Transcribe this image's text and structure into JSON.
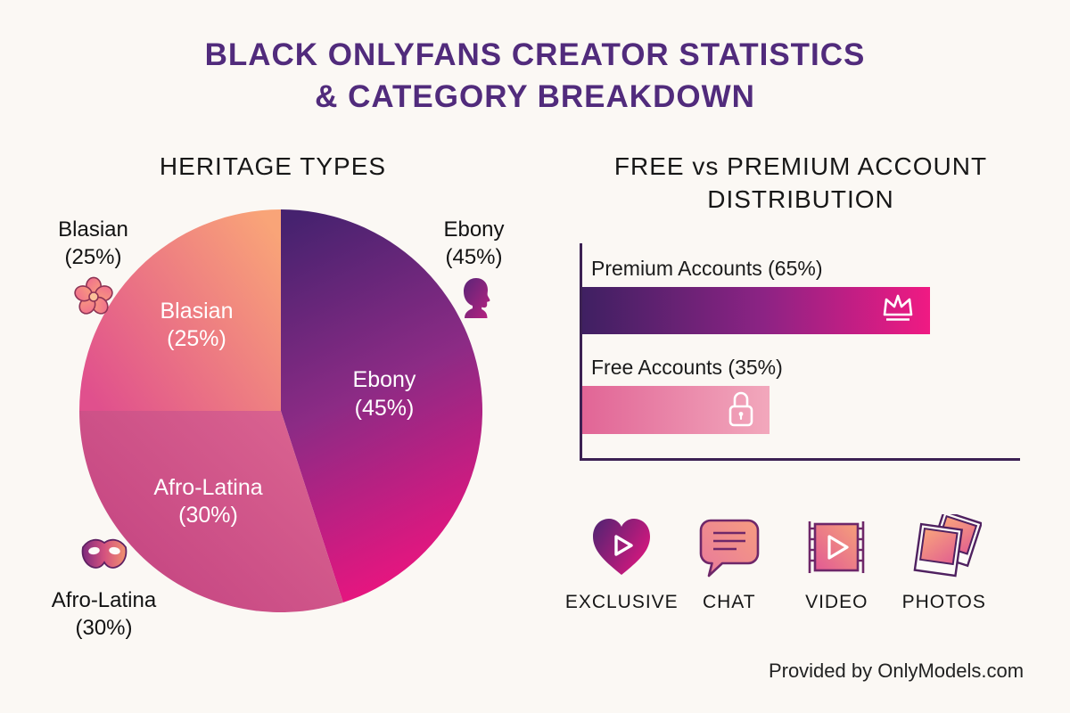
{
  "title": {
    "line1": "BLACK ONLYFANS CREATOR STATISTICS",
    "line2": "& CATEGORY BREAKDOWN"
  },
  "heritage": {
    "heading": "HERITAGE TYPES",
    "inner_labels": [
      {
        "name": "Blasian",
        "pct": "(25%)"
      },
      {
        "name": "Ebony",
        "pct": "(45%)"
      },
      {
        "name": "Afro-Latina",
        "pct": "(30%)"
      }
    ],
    "outer_labels": [
      {
        "name": "Blasian",
        "pct": "(25%)",
        "icon": "flower-icon"
      },
      {
        "name": "Ebony",
        "pct": "(45%)",
        "icon": "head-silhouette-icon"
      },
      {
        "name": "Afro-Latina",
        "pct": "(30%)",
        "icon": "carnival-mask-icon"
      }
    ]
  },
  "accounts": {
    "heading_line1": "FREE vs PREMIUM ACCOUNT",
    "heading_line2": "DISTRIBUTION",
    "bars": [
      {
        "label": "Premium Accounts (65%)",
        "value": 65,
        "icon": "crown-icon"
      },
      {
        "label": "Free Accounts (35%)",
        "value": 35,
        "icon": "lock-icon"
      }
    ]
  },
  "features": [
    {
      "label": "EXCLUSIVE",
      "icon": "heart-play-icon"
    },
    {
      "label": "CHAT",
      "icon": "chat-bubble-icon"
    },
    {
      "label": "VIDEO",
      "icon": "film-strip-icon"
    },
    {
      "label": "PHOTOS",
      "icon": "polaroid-photos-icon"
    }
  ],
  "footer": {
    "credit": "Provided by OnlyModels.com"
  },
  "colors": {
    "background": "#fbf8f4",
    "title": "#512b7c",
    "heading_text": "#171717",
    "axis": "#3c2153",
    "ebony_gradient": [
      "#46226f",
      "#8c2b85",
      "#e8157f"
    ],
    "afro_latina_gradient": [
      "#c24180",
      "#db6591"
    ],
    "blasian_gradient": [
      "#e0508d",
      "#f9a478"
    ],
    "premium_bar_gradient": [
      "#3f2062",
      "#8c2384",
      "#f01a83"
    ],
    "free_bar_gradient": [
      "#e16596",
      "#f2a8bc"
    ]
  },
  "chart_data": [
    {
      "type": "pie",
      "title": "HERITAGE TYPES",
      "labels": [
        "Ebony",
        "Afro-Latina",
        "Blasian"
      ],
      "values": [
        45,
        30,
        25
      ],
      "unit": "percent",
      "start_angle_deg": 0,
      "direction": "clockwise",
      "label_style": "inside and outside with icons"
    },
    {
      "type": "bar",
      "title": "FREE vs PREMIUM ACCOUNT DISTRIBUTION",
      "orientation": "horizontal",
      "categories": [
        "Premium Accounts",
        "Free Accounts"
      ],
      "values": [
        65,
        35
      ],
      "unit": "percent",
      "xlim": [
        0,
        100
      ],
      "grid": false,
      "legend_position": "none"
    }
  ]
}
